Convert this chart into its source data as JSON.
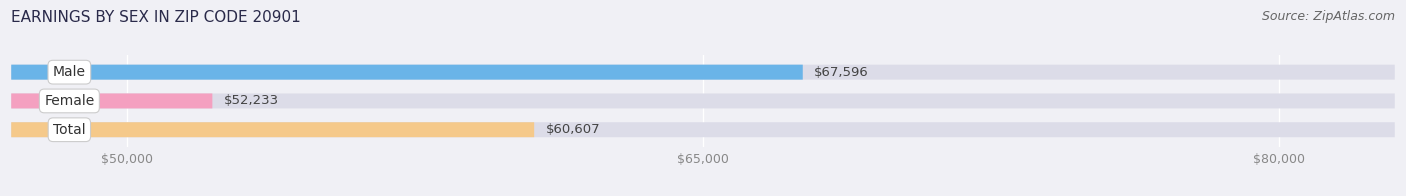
{
  "title": "EARNINGS BY SEX IN ZIP CODE 20901",
  "source": "Source: ZipAtlas.com",
  "categories": [
    "Male",
    "Female",
    "Total"
  ],
  "values": [
    67596,
    52233,
    60607
  ],
  "bar_colors": [
    "#6ab4e8",
    "#f4a0c0",
    "#f5c98a"
  ],
  "bar_bg_color": "#dcdce8",
  "xmin": 47000,
  "xmax": 83000,
  "xticks": [
    50000,
    65000,
    80000
  ],
  "xtick_labels": [
    "$50,000",
    "$65,000",
    "$80,000"
  ],
  "bar_height": 0.52,
  "title_fontsize": 11,
  "source_fontsize": 9,
  "tick_fontsize": 9,
  "label_fontsize": 10,
  "value_fontsize": 9.5,
  "background_color": "#f0f0f5",
  "title_color": "#2a2a4a",
  "source_color": "#666666",
  "tick_color": "#888888",
  "value_color": "#444444"
}
